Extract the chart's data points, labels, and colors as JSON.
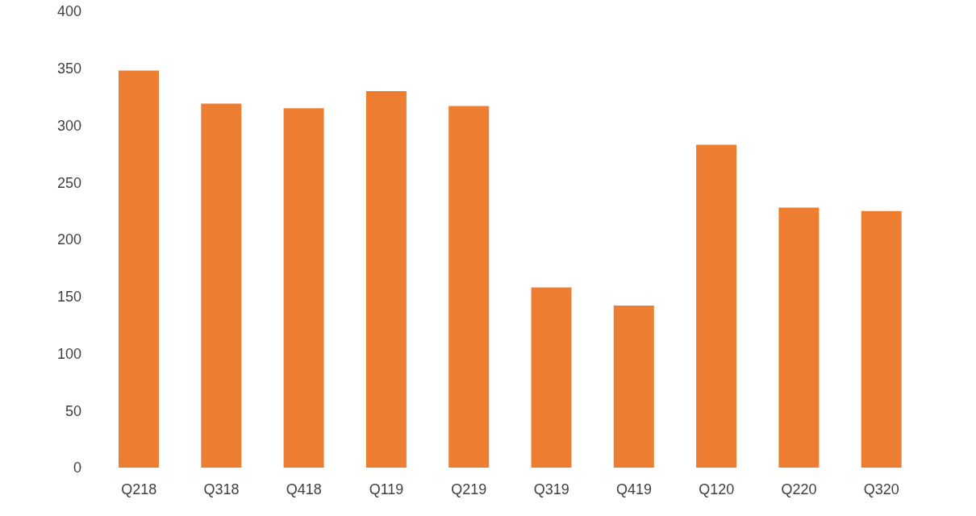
{
  "chart_data": {
    "type": "bar",
    "categories": [
      "Q218",
      "Q318",
      "Q418",
      "Q119",
      "Q219",
      "Q319",
      "Q419",
      "Q120",
      "Q220",
      "Q320"
    ],
    "values": [
      348,
      319,
      315,
      330,
      317,
      158,
      142,
      283,
      228,
      225
    ],
    "color": "#ed7d31",
    "ylim": [
      0,
      400
    ],
    "yticks": [
      0,
      50,
      100,
      150,
      200,
      250,
      300,
      350,
      400
    ],
    "grid": false,
    "legend": false
  }
}
